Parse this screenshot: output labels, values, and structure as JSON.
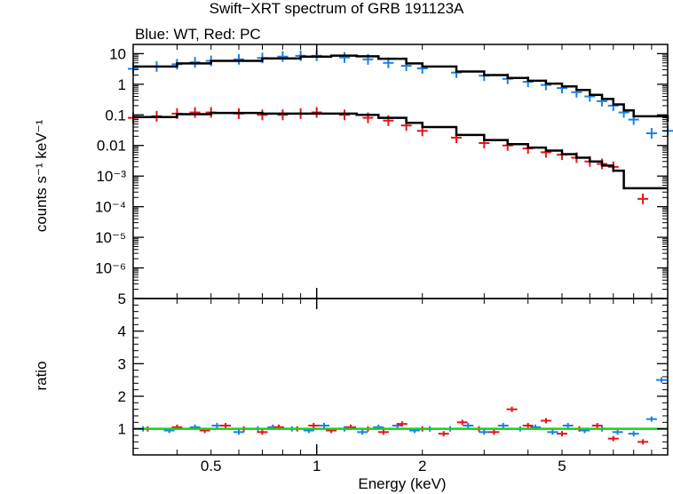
{
  "chart_data": {
    "title": "Swift−XRT spectrum of GRB 191123A",
    "subtitle": "Blue: WT, Red: PC",
    "xlabel": "Energy (keV)",
    "x_scale": "log",
    "xlim": [
      0.3,
      10
    ],
    "x_ticks": [
      {
        "v": 0.5,
        "label": "0.5"
      },
      {
        "v": 1,
        "label": "1"
      },
      {
        "v": 2,
        "label": "2"
      },
      {
        "v": 5,
        "label": "5"
      }
    ],
    "panels": [
      {
        "type": "scatter",
        "ylabel": "counts s⁻¹ keV⁻¹",
        "y_scale": "log",
        "ylim": [
          1e-07,
          20
        ],
        "y_ticks": [
          {
            "v": 10,
            "label": "10"
          },
          {
            "v": 1,
            "label": "1"
          },
          {
            "v": 0.1,
            "label": "0.1"
          },
          {
            "v": 0.01,
            "label": "0.01"
          },
          {
            "v": 0.001,
            "label": "10⁻³"
          },
          {
            "v": 0.0001,
            "label": "10⁻⁴"
          },
          {
            "v": 1e-05,
            "label": "10⁻⁵"
          },
          {
            "v": 1e-06,
            "label": "10⁻⁶"
          }
        ],
        "series": [
          {
            "color": "#1a7fe8",
            "kind": "data",
            "x": [
              0.3,
              0.35,
              0.4,
              0.45,
              0.5,
              0.6,
              0.7,
              0.8,
              0.9,
              1.0,
              1.2,
              1.4,
              1.6,
              1.8,
              2.0,
              2.5,
              3.0,
              3.5,
              4.0,
              4.5,
              5.0,
              5.5,
              6.0,
              6.5,
              7.0,
              7.5,
              8.0,
              9.0,
              10.0
            ],
            "y": [
              3.2,
              3.8,
              4.5,
              5.2,
              5.8,
              6.5,
              7.2,
              8.0,
              8.5,
              8.5,
              7.5,
              6.5,
              5.0,
              4.0,
              3.3,
              2.4,
              1.9,
              1.5,
              1.2,
              0.95,
              0.75,
              0.55,
              0.4,
              0.28,
              0.2,
              0.12,
              0.07,
              0.025,
              0.03
            ]
          },
          {
            "color": "#e8131b",
            "kind": "data",
            "x": [
              0.3,
              0.35,
              0.4,
              0.45,
              0.5,
              0.6,
              0.7,
              0.8,
              0.9,
              1.0,
              1.2,
              1.4,
              1.6,
              1.8,
              2.0,
              2.5,
              3.0,
              3.5,
              4.0,
              4.5,
              5.0,
              5.5,
              6.0,
              6.5,
              7.0,
              8.5
            ],
            "y": [
              0.08,
              0.09,
              0.11,
              0.12,
              0.12,
              0.11,
              0.1,
              0.1,
              0.11,
              0.12,
              0.1,
              0.08,
              0.065,
              0.045,
              0.03,
              0.018,
              0.012,
              0.01,
              0.008,
              0.006,
              0.005,
              0.004,
              0.003,
              0.0025,
              0.002,
              0.00018
            ]
          },
          {
            "color": "#000000",
            "kind": "model",
            "x": [
              0.3,
              0.4,
              0.5,
              0.7,
              0.9,
              1.1,
              1.3,
              1.5,
              1.8,
              2.0,
              2.5,
              3.0,
              3.5,
              4.0,
              4.5,
              5.0,
              5.5,
              6.0,
              6.5,
              7.0,
              7.5,
              8.0,
              10.0
            ],
            "y": [
              3.8,
              4.8,
              5.8,
              7.0,
              8.0,
              8.6,
              8.2,
              6.8,
              4.8,
              3.8,
              2.6,
              2.0,
              1.6,
              1.3,
              1.05,
              0.85,
              0.65,
              0.45,
              0.33,
              0.22,
              0.14,
              0.09,
              0.06
            ]
          },
          {
            "color": "#000000",
            "kind": "model",
            "x": [
              0.3,
              0.4,
              0.5,
              0.7,
              0.9,
              1.1,
              1.3,
              1.5,
              1.8,
              2.0,
              2.5,
              3.0,
              3.5,
              4.0,
              4.5,
              5.0,
              5.5,
              6.0,
              6.5,
              7.0,
              7.5,
              10.0
            ],
            "y": [
              0.085,
              0.105,
              0.115,
              0.11,
              0.11,
              0.11,
              0.1,
              0.08,
              0.055,
              0.04,
              0.022,
              0.015,
              0.011,
              0.0085,
              0.0068,
              0.0052,
              0.004,
              0.003,
              0.0022,
              0.0015,
              0.0004,
              0.0004
            ]
          }
        ]
      },
      {
        "type": "scatter",
        "ylabel": "ratio",
        "y_scale": "linear",
        "ylim": [
          0.2,
          5
        ],
        "y_ticks": [
          {
            "v": 1,
            "label": "1"
          },
          {
            "v": 2,
            "label": "2"
          },
          {
            "v": 3,
            "label": "3"
          },
          {
            "v": 4,
            "label": "4"
          },
          {
            "v": 5,
            "label": "5"
          }
        ],
        "reference_line": {
          "y": 1,
          "color": "#19d119"
        },
        "series": [
          {
            "color": "#1a7fe8",
            "kind": "data",
            "x": [
              0.32,
              0.38,
              0.45,
              0.52,
              0.6,
              0.68,
              0.75,
              0.85,
              0.95,
              1.05,
              1.2,
              1.35,
              1.5,
              1.7,
              1.9,
              2.1,
              2.4,
              2.7,
              3.0,
              3.4,
              3.8,
              4.2,
              4.7,
              5.2,
              5.8,
              6.5,
              7.2,
              8.0,
              9.0,
              9.6
            ],
            "y": [
              1.0,
              0.95,
              1.05,
              1.1,
              0.9,
              1.0,
              1.05,
              1.0,
              0.95,
              1.1,
              1.0,
              0.9,
              1.05,
              1.1,
              0.95,
              1.0,
              1.0,
              1.1,
              0.9,
              1.1,
              1.0,
              1.05,
              0.9,
              1.1,
              0.95,
              1.0,
              0.9,
              0.85,
              1.3,
              2.5
            ]
          },
          {
            "color": "#e8131b",
            "kind": "data",
            "x": [
              0.33,
              0.4,
              0.48,
              0.55,
              0.62,
              0.7,
              0.78,
              0.88,
              0.98,
              1.1,
              1.25,
              1.4,
              1.55,
              1.75,
              2.0,
              2.3,
              2.6,
              2.9,
              3.2,
              3.6,
              4.0,
              4.5,
              5.0,
              5.6,
              6.3,
              7.0,
              8.5
            ],
            "y": [
              1.0,
              1.05,
              0.95,
              1.1,
              1.0,
              0.9,
              1.05,
              1.0,
              1.1,
              0.95,
              1.05,
              1.0,
              0.9,
              1.15,
              1.0,
              0.85,
              1.2,
              1.0,
              0.9,
              1.6,
              1.1,
              1.25,
              0.85,
              1.0,
              1.1,
              0.7,
              0.6
            ]
          }
        ]
      }
    ]
  }
}
